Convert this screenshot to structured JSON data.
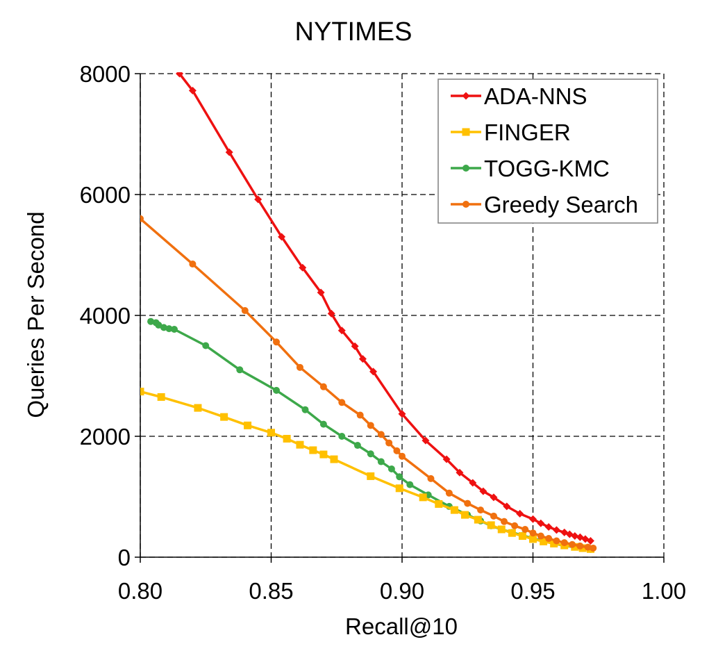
{
  "chart_data": {
    "type": "line",
    "title": "NYTIMES",
    "xlabel": "Recall@10",
    "ylabel": "Queries Per Second",
    "xlim": [
      0.8,
      1.0
    ],
    "ylim": [
      0,
      8000
    ],
    "xticks": [
      "0.80",
      "0.85",
      "0.90",
      "0.95",
      "1.00"
    ],
    "yticks": [
      "0",
      "2000",
      "4000",
      "6000",
      "8000"
    ],
    "grid": true,
    "legend": "top-right",
    "series": [
      {
        "name": "ADA-NNS",
        "color": "#ee1111",
        "marker": "diamond",
        "points": [
          [
            0.815,
            8000
          ],
          [
            0.82,
            7720
          ],
          [
            0.834,
            6700
          ],
          [
            0.845,
            5920
          ],
          [
            0.854,
            5300
          ],
          [
            0.862,
            4790
          ],
          [
            0.869,
            4380
          ],
          [
            0.873,
            4030
          ],
          [
            0.877,
            3750
          ],
          [
            0.882,
            3490
          ],
          [
            0.885,
            3280
          ],
          [
            0.889,
            3070
          ],
          [
            0.9,
            2370
          ],
          [
            0.909,
            1930
          ],
          [
            0.917,
            1620
          ],
          [
            0.922,
            1400
          ],
          [
            0.927,
            1230
          ],
          [
            0.931,
            1090
          ],
          [
            0.935,
            990
          ],
          [
            0.94,
            840
          ],
          [
            0.945,
            720
          ],
          [
            0.95,
            630
          ],
          [
            0.953,
            560
          ],
          [
            0.956,
            500
          ],
          [
            0.959,
            450
          ],
          [
            0.962,
            410
          ],
          [
            0.964,
            380
          ],
          [
            0.966,
            350
          ],
          [
            0.968,
            330
          ],
          [
            0.97,
            300
          ],
          [
            0.972,
            270
          ]
        ]
      },
      {
        "name": "FINGER",
        "color": "#ffc000",
        "marker": "square",
        "points": [
          [
            0.8,
            2740
          ],
          [
            0.808,
            2650
          ],
          [
            0.822,
            2470
          ],
          [
            0.832,
            2320
          ],
          [
            0.841,
            2180
          ],
          [
            0.85,
            2060
          ],
          [
            0.856,
            1960
          ],
          [
            0.861,
            1860
          ],
          [
            0.866,
            1770
          ],
          [
            0.87,
            1700
          ],
          [
            0.874,
            1620
          ],
          [
            0.888,
            1340
          ],
          [
            0.899,
            1140
          ],
          [
            0.908,
            990
          ],
          [
            0.914,
            880
          ],
          [
            0.92,
            780
          ],
          [
            0.924,
            700
          ],
          [
            0.929,
            620
          ],
          [
            0.934,
            530
          ],
          [
            0.938,
            460
          ],
          [
            0.942,
            400
          ],
          [
            0.946,
            350
          ],
          [
            0.95,
            300
          ],
          [
            0.954,
            260
          ],
          [
            0.958,
            225
          ],
          [
            0.962,
            195
          ],
          [
            0.966,
            170
          ],
          [
            0.969,
            150
          ],
          [
            0.972,
            135
          ]
        ]
      },
      {
        "name": "TOGG-KMC",
        "color": "#3da84a",
        "marker": "circle",
        "points": [
          [
            0.804,
            3900
          ],
          [
            0.806,
            3880
          ],
          [
            0.807,
            3840
          ],
          [
            0.809,
            3800
          ],
          [
            0.811,
            3780
          ],
          [
            0.813,
            3770
          ],
          [
            0.825,
            3500
          ],
          [
            0.838,
            3100
          ],
          [
            0.852,
            2760
          ],
          [
            0.863,
            2440
          ],
          [
            0.87,
            2200
          ],
          [
            0.877,
            2000
          ],
          [
            0.883,
            1850
          ],
          [
            0.888,
            1710
          ],
          [
            0.892,
            1580
          ],
          [
            0.896,
            1460
          ],
          [
            0.899,
            1330
          ],
          [
            0.903,
            1200
          ],
          [
            0.91,
            1030
          ],
          [
            0.918,
            840
          ],
          [
            0.925,
            700
          ],
          [
            0.93,
            600
          ],
          [
            0.934,
            520
          ],
          [
            0.938,
            460
          ],
          [
            0.942,
            410
          ],
          [
            0.946,
            360
          ],
          [
            0.95,
            310
          ],
          [
            0.954,
            265
          ],
          [
            0.958,
            225
          ],
          [
            0.962,
            190
          ],
          [
            0.966,
            165
          ],
          [
            0.969,
            145
          ],
          [
            0.972,
            130
          ]
        ]
      },
      {
        "name": "Greedy Search",
        "color": "#f0700f",
        "marker": "circle",
        "points": [
          [
            0.8,
            5600
          ],
          [
            0.82,
            4850
          ],
          [
            0.84,
            4080
          ],
          [
            0.852,
            3560
          ],
          [
            0.861,
            3140
          ],
          [
            0.87,
            2820
          ],
          [
            0.877,
            2560
          ],
          [
            0.884,
            2350
          ],
          [
            0.888,
            2180
          ],
          [
            0.892,
            2030
          ],
          [
            0.895,
            1890
          ],
          [
            0.898,
            1760
          ],
          [
            0.9,
            1670
          ],
          [
            0.911,
            1300
          ],
          [
            0.918,
            1060
          ],
          [
            0.925,
            890
          ],
          [
            0.93,
            780
          ],
          [
            0.935,
            680
          ],
          [
            0.939,
            590
          ],
          [
            0.943,
            520
          ],
          [
            0.947,
            460
          ],
          [
            0.95,
            400
          ],
          [
            0.953,
            350
          ],
          [
            0.956,
            310
          ],
          [
            0.959,
            270
          ],
          [
            0.962,
            240
          ],
          [
            0.965,
            210
          ],
          [
            0.968,
            185
          ],
          [
            0.971,
            165
          ],
          [
            0.973,
            150
          ]
        ]
      }
    ]
  }
}
